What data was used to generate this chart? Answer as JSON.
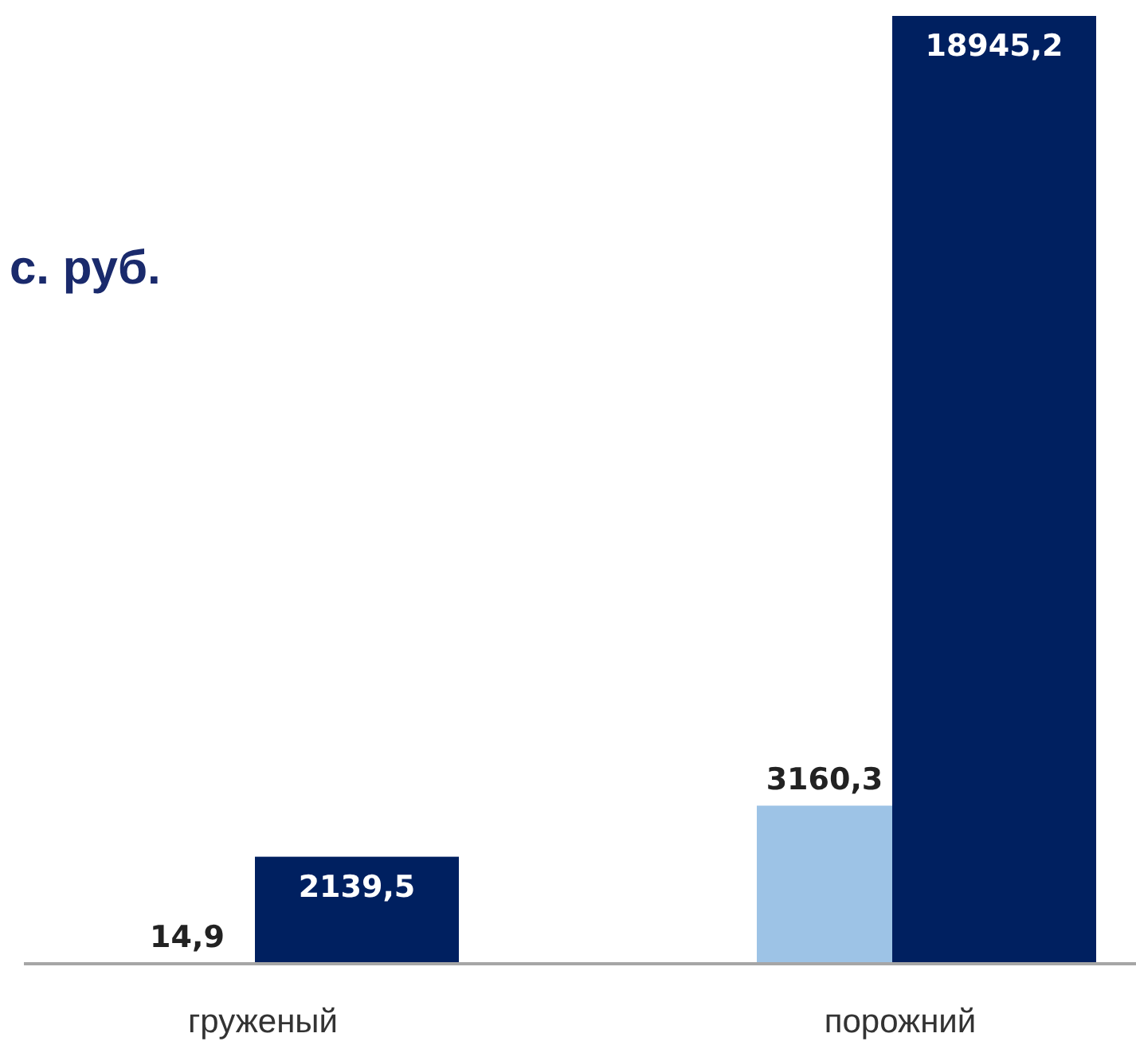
{
  "chart_data": {
    "type": "bar",
    "title": "с. руб.",
    "categories": [
      "груженый",
      "порожний"
    ],
    "series": [
      {
        "color": "#9dc3e6",
        "values": [
          14.9,
          3160.3
        ],
        "value_labels": [
          "14,9",
          "3160,3"
        ]
      },
      {
        "color": "#002060",
        "values": [
          2139.5,
          18945.2
        ],
        "value_labels": [
          "2139,5",
          "18945,2"
        ]
      }
    ]
  }
}
